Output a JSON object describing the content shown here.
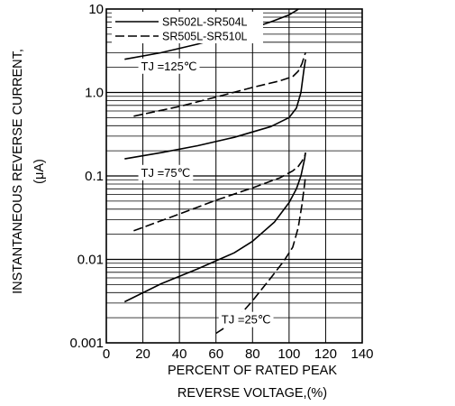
{
  "chart_data": {
    "type": "line",
    "title": "",
    "xlabel_lines": [
      "PERCENT OF RATED PEAK",
      "REVERSE VOLTAGE,(%)"
    ],
    "ylabel_lines": [
      "INSTANTANEOUS REVERSE CURRENT,",
      "(μA)"
    ],
    "x_ticks": [
      "0",
      "20",
      "40",
      "60",
      "80",
      "100",
      "120",
      "140"
    ],
    "y_ticks": [
      "0.001",
      "0.01",
      "0.1",
      "1.0",
      "10"
    ],
    "xlim": [
      0,
      140
    ],
    "ylim": [
      0.001,
      10
    ],
    "y_scale": "log",
    "grid": true,
    "legend_position": "top",
    "legend": [
      {
        "label": "SR502L-SR504L",
        "style": "solid"
      },
      {
        "label": "SR505L-SR510L",
        "style": "dashed"
      }
    ],
    "annotations": [
      {
        "text": "TJ =125℃",
        "x": 19,
        "y": 1.85
      },
      {
        "text": "TJ =75℃",
        "x": 19,
        "y": 0.098
      },
      {
        "text": "TJ =25℃",
        "x": 63,
        "y": 0.0017
      }
    ],
    "series": [
      {
        "name": "SR502L-SR504L",
        "temperature": "125℃",
        "style": "solid",
        "x": [
          10,
          30,
          50,
          70,
          90,
          100,
          104,
          106.5,
          108,
          109
        ],
        "y": [
          2.5,
          3.0,
          3.8,
          5.0,
          7.0,
          8.5,
          9.6,
          10.5,
          11.5,
          12.5
        ]
      },
      {
        "name": "SR505L-SR510L",
        "temperature": "125℃",
        "style": "dashed",
        "x": [
          15,
          40,
          60,
          80,
          95,
          102,
          105,
          107,
          108.5,
          109
        ],
        "y": [
          0.52,
          0.68,
          0.88,
          1.15,
          1.38,
          1.55,
          1.8,
          2.2,
          2.8,
          3.0
        ]
      },
      {
        "name": "SR502L-SR504L",
        "temperature": "75℃",
        "style": "solid",
        "x": [
          10,
          30,
          50,
          70,
          90,
          100,
          104,
          106.5,
          108,
          109
        ],
        "y": [
          0.16,
          0.19,
          0.23,
          0.29,
          0.39,
          0.5,
          0.65,
          1.0,
          1.8,
          2.5
        ]
      },
      {
        "name": "SR505L-SR510L",
        "temperature": "75℃",
        "style": "dashed",
        "x": [
          15,
          40,
          60,
          80,
          95,
          102,
          105,
          107,
          108.5,
          109
        ],
        "y": [
          0.022,
          0.035,
          0.051,
          0.072,
          0.095,
          0.115,
          0.13,
          0.15,
          0.17,
          0.19
        ]
      },
      {
        "name": "SR502L-SR504L",
        "temperature": "25℃",
        "style": "solid",
        "x": [
          10,
          30,
          50,
          70,
          80,
          92,
          100,
          104,
          106.5,
          108.5,
          109
        ],
        "y": [
          0.0031,
          0.0051,
          0.0077,
          0.012,
          0.0165,
          0.028,
          0.048,
          0.07,
          0.1,
          0.16,
          0.19
        ]
      },
      {
        "name": "SR505L-SR510L",
        "temperature": "25℃",
        "style": "dashed",
        "x": [
          60,
          70,
          80,
          90,
          97,
          102,
          105,
          107,
          108.5,
          109
        ],
        "y": [
          0.0013,
          0.0018,
          0.0032,
          0.006,
          0.0095,
          0.014,
          0.024,
          0.045,
          0.08,
          0.1
        ]
      }
    ]
  }
}
